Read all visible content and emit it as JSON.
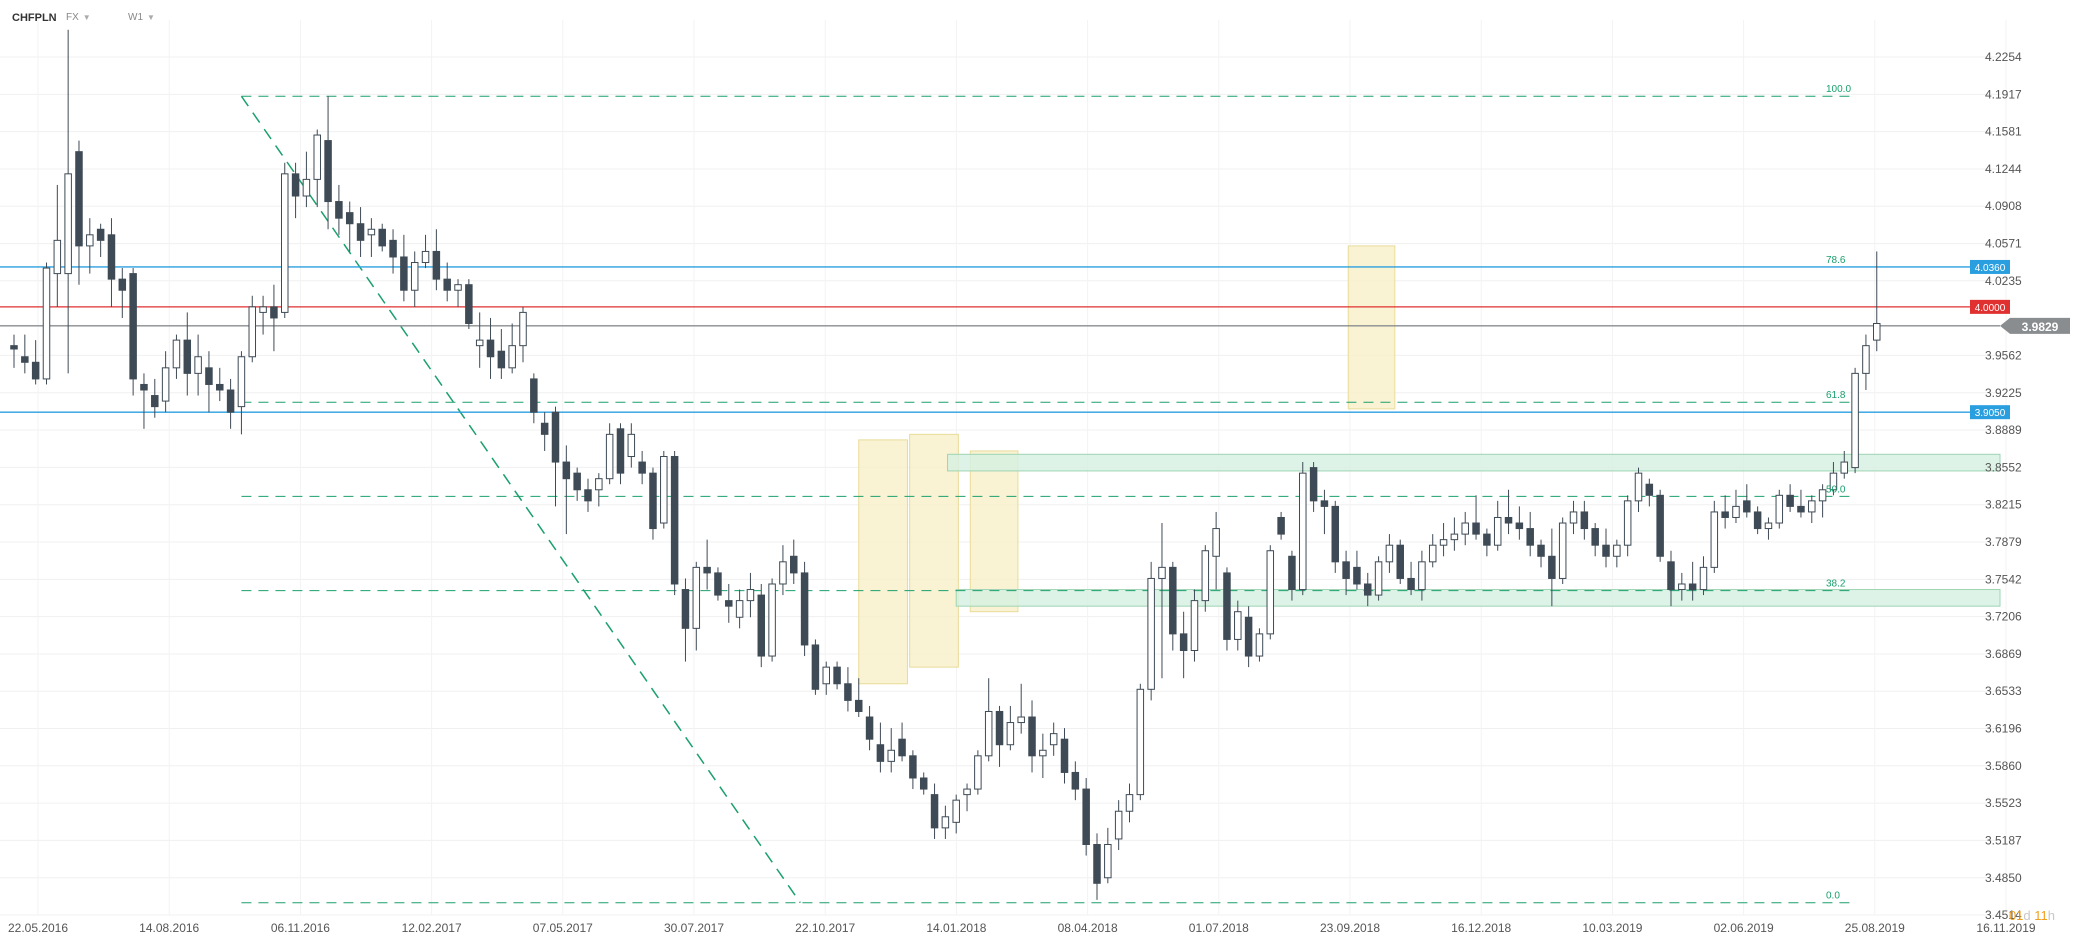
{
  "header": {
    "symbol": "CHFPLN",
    "market": "FX",
    "timeframe": "W1"
  },
  "countdown": {
    "d_value": "01",
    "d_unit": "d",
    "h_value": "11",
    "h_unit": "h"
  },
  "colors": {
    "bull_fill": "#ffffff",
    "bear_fill": "#3e4a55",
    "wick": "#3e4a55",
    "fib": "#1aa06d",
    "support": "#2a9fe0",
    "resistance": "#e03030",
    "current": "#8a8d90",
    "zone_yellow": "#f7f0c8",
    "zone_green": "#d6f0e2"
  },
  "chart_data": {
    "type": "candlestick",
    "title": "",
    "x_tick_labels": [
      "22.05.2016",
      "14.08.2016",
      "06.11.2016",
      "12.02.2017",
      "07.05.2017",
      "30.07.2017",
      "22.10.2017",
      "14.01.2018",
      "08.04.2018",
      "01.07.2018",
      "23.09.2018",
      "16.12.2018",
      "10.03.2019",
      "02.06.2019",
      "25.08.2019",
      "16.11.2019"
    ],
    "y_tick_labels": [
      "4.2254",
      "4.1917",
      "4.1581",
      "4.1244",
      "4.0908",
      "4.0571",
      "4.0235",
      "3.9562",
      "3.9225",
      "3.8889",
      "3.8552",
      "3.8215",
      "3.7879",
      "3.7542",
      "3.7206",
      "3.6869",
      "3.6533",
      "3.6196",
      "3.5860",
      "3.5523",
      "3.5187",
      "3.4850",
      "3.4514"
    ],
    "ylim": [
      3.4514,
      4.2254
    ],
    "price_levels": [
      {
        "label": "4.0360",
        "value": 4.036,
        "kind": "support"
      },
      {
        "label": "4.0000",
        "value": 4.0,
        "kind": "resistance"
      },
      {
        "label": "3.9050",
        "value": 3.905,
        "kind": "support"
      }
    ],
    "current_price": {
      "label": "3.9829",
      "value": 3.9829
    },
    "fib_levels": [
      {
        "label": "100.0",
        "value": 4.19
      },
      {
        "label": "78.6",
        "value": 4.036
      },
      {
        "label": "61.8",
        "value": 3.914
      },
      {
        "label": "50.0",
        "value": 3.829
      },
      {
        "label": "38.2",
        "value": 3.744
      },
      {
        "label": "0.0",
        "value": 3.4625
      }
    ],
    "candles": [
      {
        "o": 3.965,
        "h": 3.975,
        "l": 3.945,
        "c": 3.962
      },
      {
        "o": 3.955,
        "h": 3.975,
        "l": 3.94,
        "c": 3.95
      },
      {
        "o": 3.95,
        "h": 3.97,
        "l": 3.93,
        "c": 3.935
      },
      {
        "o": 3.935,
        "h": 4.04,
        "l": 3.93,
        "c": 4.035
      },
      {
        "o": 4.03,
        "h": 4.11,
        "l": 4.0,
        "c": 4.06
      },
      {
        "o": 4.03,
        "h": 4.25,
        "l": 3.94,
        "c": 4.12
      },
      {
        "o": 4.14,
        "h": 4.15,
        "l": 4.02,
        "c": 4.055
      },
      {
        "o": 4.055,
        "h": 4.08,
        "l": 4.03,
        "c": 4.065
      },
      {
        "o": 4.07,
        "h": 4.075,
        "l": 4.045,
        "c": 4.06
      },
      {
        "o": 4.065,
        "h": 4.08,
        "l": 4.0,
        "c": 4.025
      },
      {
        "o": 4.025,
        "h": 4.035,
        "l": 3.99,
        "c": 4.015
      },
      {
        "o": 4.03,
        "h": 4.035,
        "l": 3.92,
        "c": 3.935
      },
      {
        "o": 3.93,
        "h": 3.94,
        "l": 3.89,
        "c": 3.925
      },
      {
        "o": 3.92,
        "h": 3.935,
        "l": 3.9,
        "c": 3.91
      },
      {
        "o": 3.915,
        "h": 3.96,
        "l": 3.905,
        "c": 3.945
      },
      {
        "o": 3.945,
        "h": 3.975,
        "l": 3.935,
        "c": 3.97
      },
      {
        "o": 3.97,
        "h": 3.995,
        "l": 3.92,
        "c": 3.94
      },
      {
        "o": 3.94,
        "h": 3.975,
        "l": 3.92,
        "c": 3.955
      },
      {
        "o": 3.945,
        "h": 3.96,
        "l": 3.905,
        "c": 3.93
      },
      {
        "o": 3.93,
        "h": 3.945,
        "l": 3.915,
        "c": 3.925
      },
      {
        "o": 3.925,
        "h": 3.935,
        "l": 3.89,
        "c": 3.905
      },
      {
        "o": 3.91,
        "h": 3.96,
        "l": 3.885,
        "c": 3.955
      },
      {
        "o": 3.955,
        "h": 4.01,
        "l": 3.95,
        "c": 4.0
      },
      {
        "o": 3.995,
        "h": 4.01,
        "l": 3.975,
        "c": 4.0
      },
      {
        "o": 4.0,
        "h": 4.02,
        "l": 3.96,
        "c": 3.99
      },
      {
        "o": 3.995,
        "h": 4.13,
        "l": 3.99,
        "c": 4.12
      },
      {
        "o": 4.12,
        "h": 4.13,
        "l": 4.08,
        "c": 4.1
      },
      {
        "o": 4.1,
        "h": 4.14,
        "l": 4.09,
        "c": 4.115
      },
      {
        "o": 4.115,
        "h": 4.16,
        "l": 4.09,
        "c": 4.155
      },
      {
        "o": 4.15,
        "h": 4.19,
        "l": 4.07,
        "c": 4.095
      },
      {
        "o": 4.095,
        "h": 4.11,
        "l": 4.065,
        "c": 4.08
      },
      {
        "o": 4.085,
        "h": 4.095,
        "l": 4.05,
        "c": 4.075
      },
      {
        "o": 4.075,
        "h": 4.09,
        "l": 4.045,
        "c": 4.06
      },
      {
        "o": 4.065,
        "h": 4.08,
        "l": 4.045,
        "c": 4.07
      },
      {
        "o": 4.07,
        "h": 4.075,
        "l": 4.05,
        "c": 4.055
      },
      {
        "o": 4.06,
        "h": 4.07,
        "l": 4.03,
        "c": 4.045
      },
      {
        "o": 4.045,
        "h": 4.065,
        "l": 4.005,
        "c": 4.015
      },
      {
        "o": 4.015,
        "h": 4.05,
        "l": 4.0,
        "c": 4.04
      },
      {
        "o": 4.04,
        "h": 4.065,
        "l": 4.035,
        "c": 4.05
      },
      {
        "o": 4.05,
        "h": 4.07,
        "l": 4.015,
        "c": 4.025
      },
      {
        "o": 4.025,
        "h": 4.04,
        "l": 4.005,
        "c": 4.015
      },
      {
        "o": 4.015,
        "h": 4.025,
        "l": 4.0,
        "c": 4.02
      },
      {
        "o": 4.02,
        "h": 4.025,
        "l": 3.98,
        "c": 3.985
      },
      {
        "o": 3.965,
        "h": 3.995,
        "l": 3.945,
        "c": 3.97
      },
      {
        "o": 3.97,
        "h": 3.99,
        "l": 3.935,
        "c": 3.955
      },
      {
        "o": 3.96,
        "h": 3.98,
        "l": 3.935,
        "c": 3.945
      },
      {
        "o": 3.945,
        "h": 3.985,
        "l": 3.94,
        "c": 3.965
      },
      {
        "o": 3.965,
        "h": 4.0,
        "l": 3.95,
        "c": 3.995
      },
      {
        "o": 3.935,
        "h": 3.94,
        "l": 3.895,
        "c": 3.905
      },
      {
        "o": 3.895,
        "h": 3.905,
        "l": 3.87,
        "c": 3.885
      },
      {
        "o": 3.905,
        "h": 3.91,
        "l": 3.82,
        "c": 3.86
      },
      {
        "o": 3.86,
        "h": 3.875,
        "l": 3.795,
        "c": 3.845
      },
      {
        "o": 3.85,
        "h": 3.855,
        "l": 3.825,
        "c": 3.835
      },
      {
        "o": 3.835,
        "h": 3.845,
        "l": 3.815,
        "c": 3.825
      },
      {
        "o": 3.835,
        "h": 3.85,
        "l": 3.82,
        "c": 3.845
      },
      {
        "o": 3.845,
        "h": 3.895,
        "l": 3.84,
        "c": 3.885
      },
      {
        "o": 3.89,
        "h": 3.895,
        "l": 3.84,
        "c": 3.85
      },
      {
        "o": 3.865,
        "h": 3.895,
        "l": 3.855,
        "c": 3.885
      },
      {
        "o": 3.86,
        "h": 3.87,
        "l": 3.84,
        "c": 3.85
      },
      {
        "o": 3.85,
        "h": 3.855,
        "l": 3.79,
        "c": 3.8
      },
      {
        "o": 3.805,
        "h": 3.87,
        "l": 3.8,
        "c": 3.865
      },
      {
        "o": 3.865,
        "h": 3.87,
        "l": 3.74,
        "c": 3.75
      },
      {
        "o": 3.745,
        "h": 3.755,
        "l": 3.68,
        "c": 3.71
      },
      {
        "o": 3.71,
        "h": 3.77,
        "l": 3.69,
        "c": 3.765
      },
      {
        "o": 3.765,
        "h": 3.79,
        "l": 3.745,
        "c": 3.76
      },
      {
        "o": 3.76,
        "h": 3.765,
        "l": 3.735,
        "c": 3.74
      },
      {
        "o": 3.735,
        "h": 3.75,
        "l": 3.715,
        "c": 3.73
      },
      {
        "o": 3.72,
        "h": 3.745,
        "l": 3.71,
        "c": 3.735
      },
      {
        "o": 3.735,
        "h": 3.76,
        "l": 3.72,
        "c": 3.745
      },
      {
        "o": 3.74,
        "h": 3.75,
        "l": 3.675,
        "c": 3.685
      },
      {
        "o": 3.685,
        "h": 3.755,
        "l": 3.68,
        "c": 3.75
      },
      {
        "o": 3.75,
        "h": 3.785,
        "l": 3.74,
        "c": 3.77
      },
      {
        "o": 3.775,
        "h": 3.79,
        "l": 3.75,
        "c": 3.76
      },
      {
        "o": 3.76,
        "h": 3.77,
        "l": 3.685,
        "c": 3.695
      },
      {
        "o": 3.695,
        "h": 3.7,
        "l": 3.65,
        "c": 3.655
      },
      {
        "o": 3.66,
        "h": 3.68,
        "l": 3.65,
        "c": 3.675
      },
      {
        "o": 3.675,
        "h": 3.68,
        "l": 3.655,
        "c": 3.66
      },
      {
        "o": 3.66,
        "h": 3.675,
        "l": 3.635,
        "c": 3.645
      },
      {
        "o": 3.645,
        "h": 3.665,
        "l": 3.63,
        "c": 3.635
      },
      {
        "o": 3.63,
        "h": 3.64,
        "l": 3.6,
        "c": 3.61
      },
      {
        "o": 3.605,
        "h": 3.625,
        "l": 3.58,
        "c": 3.59
      },
      {
        "o": 3.59,
        "h": 3.62,
        "l": 3.58,
        "c": 3.6
      },
      {
        "o": 3.61,
        "h": 3.625,
        "l": 3.59,
        "c": 3.595
      },
      {
        "o": 3.595,
        "h": 3.6,
        "l": 3.565,
        "c": 3.575
      },
      {
        "o": 3.575,
        "h": 3.58,
        "l": 3.56,
        "c": 3.565
      },
      {
        "o": 3.56,
        "h": 3.57,
        "l": 3.52,
        "c": 3.53
      },
      {
        "o": 3.53,
        "h": 3.55,
        "l": 3.52,
        "c": 3.54
      },
      {
        "o": 3.535,
        "h": 3.56,
        "l": 3.525,
        "c": 3.555
      },
      {
        "o": 3.56,
        "h": 3.57,
        "l": 3.545,
        "c": 3.565
      },
      {
        "o": 3.565,
        "h": 3.6,
        "l": 3.56,
        "c": 3.595
      },
      {
        "o": 3.595,
        "h": 3.665,
        "l": 3.59,
        "c": 3.635
      },
      {
        "o": 3.635,
        "h": 3.64,
        "l": 3.585,
        "c": 3.605
      },
      {
        "o": 3.605,
        "h": 3.64,
        "l": 3.6,
        "c": 3.625
      },
      {
        "o": 3.625,
        "h": 3.66,
        "l": 3.615,
        "c": 3.63
      },
      {
        "o": 3.63,
        "h": 3.645,
        "l": 3.58,
        "c": 3.595
      },
      {
        "o": 3.595,
        "h": 3.615,
        "l": 3.575,
        "c": 3.6
      },
      {
        "o": 3.605,
        "h": 3.625,
        "l": 3.595,
        "c": 3.615
      },
      {
        "o": 3.61,
        "h": 3.62,
        "l": 3.57,
        "c": 3.58
      },
      {
        "o": 3.58,
        "h": 3.59,
        "l": 3.555,
        "c": 3.565
      },
      {
        "o": 3.565,
        "h": 3.575,
        "l": 3.505,
        "c": 3.515
      },
      {
        "o": 3.515,
        "h": 3.525,
        "l": 3.465,
        "c": 3.48
      },
      {
        "o": 3.485,
        "h": 3.53,
        "l": 3.48,
        "c": 3.515
      },
      {
        "o": 3.52,
        "h": 3.555,
        "l": 3.51,
        "c": 3.545
      },
      {
        "o": 3.545,
        "h": 3.57,
        "l": 3.535,
        "c": 3.56
      },
      {
        "o": 3.56,
        "h": 3.66,
        "l": 3.555,
        "c": 3.655
      },
      {
        "o": 3.655,
        "h": 3.77,
        "l": 3.645,
        "c": 3.755
      },
      {
        "o": 3.755,
        "h": 3.805,
        "l": 3.665,
        "c": 3.765
      },
      {
        "o": 3.765,
        "h": 3.77,
        "l": 3.69,
        "c": 3.705
      },
      {
        "o": 3.705,
        "h": 3.725,
        "l": 3.665,
        "c": 3.69
      },
      {
        "o": 3.69,
        "h": 3.745,
        "l": 3.68,
        "c": 3.735
      },
      {
        "o": 3.735,
        "h": 3.785,
        "l": 3.725,
        "c": 3.78
      },
      {
        "o": 3.775,
        "h": 3.815,
        "l": 3.745,
        "c": 3.8
      },
      {
        "o": 3.76,
        "h": 3.765,
        "l": 3.69,
        "c": 3.7
      },
      {
        "o": 3.7,
        "h": 3.735,
        "l": 3.69,
        "c": 3.725
      },
      {
        "o": 3.72,
        "h": 3.73,
        "l": 3.675,
        "c": 3.685
      },
      {
        "o": 3.685,
        "h": 3.71,
        "l": 3.68,
        "c": 3.705
      },
      {
        "o": 3.705,
        "h": 3.785,
        "l": 3.7,
        "c": 3.78
      },
      {
        "o": 3.81,
        "h": 3.815,
        "l": 3.79,
        "c": 3.795
      },
      {
        "o": 3.775,
        "h": 3.78,
        "l": 3.735,
        "c": 3.745
      },
      {
        "o": 3.745,
        "h": 3.86,
        "l": 3.74,
        "c": 3.85
      },
      {
        "o": 3.855,
        "h": 3.86,
        "l": 3.815,
        "c": 3.825
      },
      {
        "o": 3.825,
        "h": 3.835,
        "l": 3.795,
        "c": 3.82
      },
      {
        "o": 3.82,
        "h": 3.825,
        "l": 3.76,
        "c": 3.77
      },
      {
        "o": 3.77,
        "h": 3.78,
        "l": 3.74,
        "c": 3.755
      },
      {
        "o": 3.765,
        "h": 3.78,
        "l": 3.745,
        "c": 3.75
      },
      {
        "o": 3.75,
        "h": 3.76,
        "l": 3.73,
        "c": 3.74
      },
      {
        "o": 3.74,
        "h": 3.775,
        "l": 3.735,
        "c": 3.77
      },
      {
        "o": 3.77,
        "h": 3.795,
        "l": 3.76,
        "c": 3.785
      },
      {
        "o": 3.785,
        "h": 3.79,
        "l": 3.75,
        "c": 3.755
      },
      {
        "o": 3.755,
        "h": 3.77,
        "l": 3.74,
        "c": 3.745
      },
      {
        "o": 3.745,
        "h": 3.78,
        "l": 3.735,
        "c": 3.77
      },
      {
        "o": 3.77,
        "h": 3.795,
        "l": 3.765,
        "c": 3.785
      },
      {
        "o": 3.785,
        "h": 3.805,
        "l": 3.775,
        "c": 3.79
      },
      {
        "o": 3.79,
        "h": 3.81,
        "l": 3.78,
        "c": 3.795
      },
      {
        "o": 3.795,
        "h": 3.815,
        "l": 3.785,
        "c": 3.805
      },
      {
        "o": 3.805,
        "h": 3.83,
        "l": 3.79,
        "c": 3.795
      },
      {
        "o": 3.795,
        "h": 3.8,
        "l": 3.775,
        "c": 3.785
      },
      {
        "o": 3.785,
        "h": 3.825,
        "l": 3.78,
        "c": 3.81
      },
      {
        "o": 3.81,
        "h": 3.835,
        "l": 3.795,
        "c": 3.805
      },
      {
        "o": 3.805,
        "h": 3.82,
        "l": 3.79,
        "c": 3.8
      },
      {
        "o": 3.8,
        "h": 3.815,
        "l": 3.775,
        "c": 3.785
      },
      {
        "o": 3.785,
        "h": 3.79,
        "l": 3.765,
        "c": 3.775
      },
      {
        "o": 3.775,
        "h": 3.8,
        "l": 3.73,
        "c": 3.755
      },
      {
        "o": 3.755,
        "h": 3.81,
        "l": 3.75,
        "c": 3.805
      },
      {
        "o": 3.805,
        "h": 3.825,
        "l": 3.795,
        "c": 3.815
      },
      {
        "o": 3.815,
        "h": 3.825,
        "l": 3.79,
        "c": 3.8
      },
      {
        "o": 3.8,
        "h": 3.805,
        "l": 3.775,
        "c": 3.785
      },
      {
        "o": 3.785,
        "h": 3.8,
        "l": 3.765,
        "c": 3.775
      },
      {
        "o": 3.775,
        "h": 3.79,
        "l": 3.765,
        "c": 3.785
      },
      {
        "o": 3.785,
        "h": 3.83,
        "l": 3.775,
        "c": 3.825
      },
      {
        "o": 3.825,
        "h": 3.855,
        "l": 3.815,
        "c": 3.85
      },
      {
        "o": 3.84,
        "h": 3.845,
        "l": 3.82,
        "c": 3.83
      },
      {
        "o": 3.83,
        "h": 3.835,
        "l": 3.77,
        "c": 3.775
      },
      {
        "o": 3.77,
        "h": 3.78,
        "l": 3.73,
        "c": 3.745
      },
      {
        "o": 3.745,
        "h": 3.76,
        "l": 3.735,
        "c": 3.75
      },
      {
        "o": 3.75,
        "h": 3.77,
        "l": 3.735,
        "c": 3.745
      },
      {
        "o": 3.745,
        "h": 3.775,
        "l": 3.74,
        "c": 3.765
      },
      {
        "o": 3.765,
        "h": 3.825,
        "l": 3.76,
        "c": 3.815
      },
      {
        "o": 3.815,
        "h": 3.83,
        "l": 3.8,
        "c": 3.81
      },
      {
        "o": 3.81,
        "h": 3.835,
        "l": 3.805,
        "c": 3.82
      },
      {
        "o": 3.825,
        "h": 3.84,
        "l": 3.81,
        "c": 3.815
      },
      {
        "o": 3.815,
        "h": 3.82,
        "l": 3.795,
        "c": 3.8
      },
      {
        "o": 3.8,
        "h": 3.81,
        "l": 3.79,
        "c": 3.805
      },
      {
        "o": 3.805,
        "h": 3.835,
        "l": 3.8,
        "c": 3.83
      },
      {
        "o": 3.83,
        "h": 3.84,
        "l": 3.815,
        "c": 3.82
      },
      {
        "o": 3.82,
        "h": 3.835,
        "l": 3.81,
        "c": 3.815
      },
      {
        "o": 3.815,
        "h": 3.83,
        "l": 3.805,
        "c": 3.825
      },
      {
        "o": 3.825,
        "h": 3.84,
        "l": 3.81,
        "c": 3.835
      },
      {
        "o": 3.835,
        "h": 3.86,
        "l": 3.83,
        "c": 3.85
      },
      {
        "o": 3.85,
        "h": 3.87,
        "l": 3.845,
        "c": 3.86
      },
      {
        "o": 3.855,
        "h": 3.945,
        "l": 3.85,
        "c": 3.94
      },
      {
        "o": 3.94,
        "h": 3.975,
        "l": 3.925,
        "c": 3.965
      },
      {
        "o": 3.97,
        "h": 4.05,
        "l": 3.96,
        "c": 3.985
      }
    ]
  }
}
